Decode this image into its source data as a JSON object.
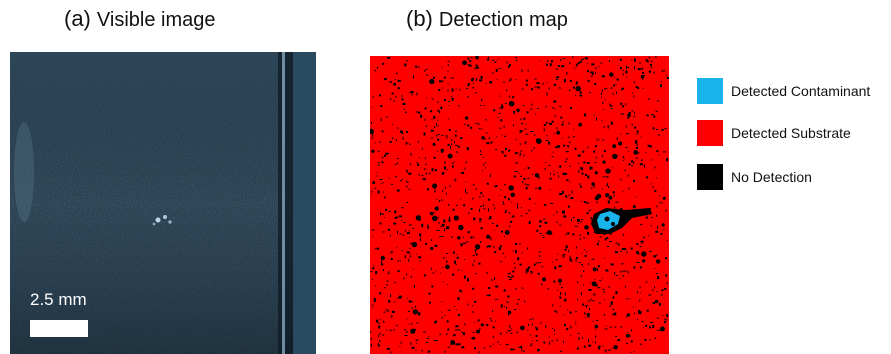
{
  "panel_a": {
    "letter": "(a)",
    "title": "Visible image",
    "scale_label": "2.5 mm"
  },
  "panel_b": {
    "letter": "(b)",
    "title": "Detection map"
  },
  "legend": [
    {
      "label": "Detected Contaminant",
      "color": "#1ab4ec"
    },
    {
      "label": "Detected Substrate",
      "color": "#ff0000"
    },
    {
      "label": "No Detection",
      "color": "#000000"
    }
  ]
}
